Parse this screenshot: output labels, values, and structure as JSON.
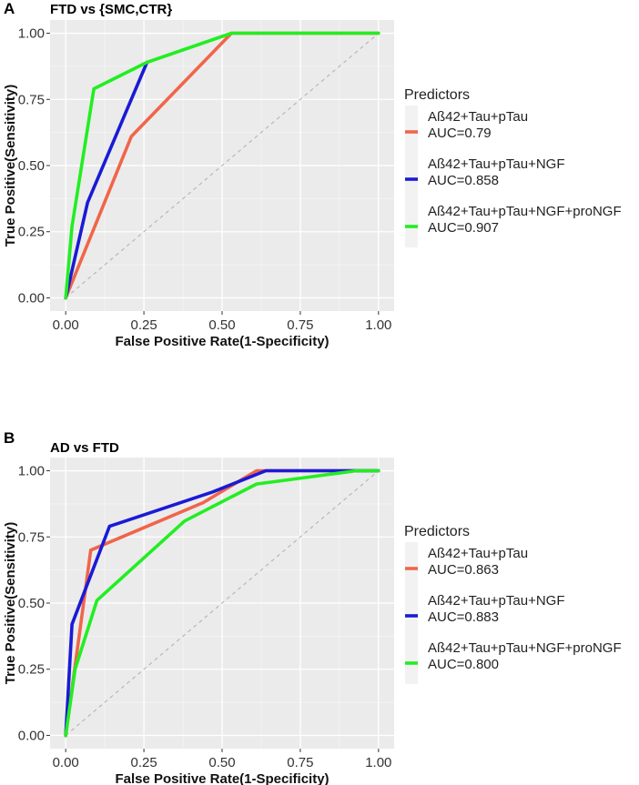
{
  "chart_data": [
    {
      "type": "line",
      "panel": "A",
      "title": "FTD vs {SMC,CTR}",
      "xlabel": "False Positive Rate(1-Specificity)",
      "ylabel": "True Positive(Sensitivity)",
      "xlim": [
        0,
        1
      ],
      "ylim": [
        0,
        1
      ],
      "xticks": [
        "0.00",
        "0.25",
        "0.50",
        "0.75",
        "1.00"
      ],
      "yticks": [
        "0.00",
        "0.25",
        "0.50",
        "0.75",
        "1.00"
      ],
      "legend_title": "Predictors",
      "series": [
        {
          "name": "Aß42+Tau+pTau",
          "auc": "AUC=0.79",
          "color": "#f0654a",
          "points": [
            [
              0,
              0
            ],
            [
              0.21,
              0.61
            ],
            [
              0.53,
              1.0
            ],
            [
              1.0,
              1.0
            ]
          ]
        },
        {
          "name": "Aß42+Tau+pTau+NGF",
          "auc": "AUC=0.858",
          "color": "#1a1ad6",
          "points": [
            [
              0,
              0
            ],
            [
              0.07,
              0.36
            ],
            [
              0.26,
              0.89
            ]
          ]
        },
        {
          "name": "Aß42+Tau+pTau+NGF+proNGF",
          "auc": "AUC=0.907",
          "color": "#22ee22",
          "points": [
            [
              0,
              0
            ],
            [
              0.02,
              0.27
            ],
            [
              0.09,
              0.79
            ],
            [
              0.26,
              0.89
            ],
            [
              0.53,
              1.0
            ],
            [
              1.0,
              1.0
            ]
          ]
        }
      ]
    },
    {
      "type": "line",
      "panel": "B",
      "title": "AD vs FTD",
      "xlabel": "False Positive Rate(1-Specificity)",
      "ylabel": "True Positive(Sensitivity)",
      "xlim": [
        0,
        1
      ],
      "ylim": [
        0,
        1
      ],
      "xticks": [
        "0.00",
        "0.25",
        "0.50",
        "0.75",
        "1.00"
      ],
      "yticks": [
        "0.00",
        "0.25",
        "0.50",
        "0.75",
        "1.00"
      ],
      "legend_title": "Predictors",
      "series": [
        {
          "name": "Aß42+Tau+pTau",
          "auc": "AUC=0.863",
          "color": "#f0654a",
          "points": [
            [
              0,
              0
            ],
            [
              0.08,
              0.7
            ],
            [
              0.44,
              0.88
            ],
            [
              0.61,
              1.0
            ],
            [
              1.0,
              1.0
            ]
          ]
        },
        {
          "name": "Aß42+Tau+pTau+NGF",
          "auc": "AUC=0.883",
          "color": "#1a1ad6",
          "points": [
            [
              0,
              0
            ],
            [
              0.02,
              0.42
            ],
            [
              0.14,
              0.79
            ],
            [
              0.47,
              0.92
            ],
            [
              0.64,
              1.0
            ],
            [
              1.0,
              1.0
            ]
          ]
        },
        {
          "name": "Aß42+Tau+pTau+NGF+proNGF",
          "auc": "AUC=0.800",
          "color": "#22ee22",
          "points": [
            [
              0,
              0
            ],
            [
              0.03,
              0.25
            ],
            [
              0.1,
              0.51
            ],
            [
              0.38,
              0.81
            ],
            [
              0.61,
              0.95
            ],
            [
              0.93,
              1.0
            ],
            [
              1.0,
              1.0
            ]
          ]
        }
      ]
    }
  ]
}
